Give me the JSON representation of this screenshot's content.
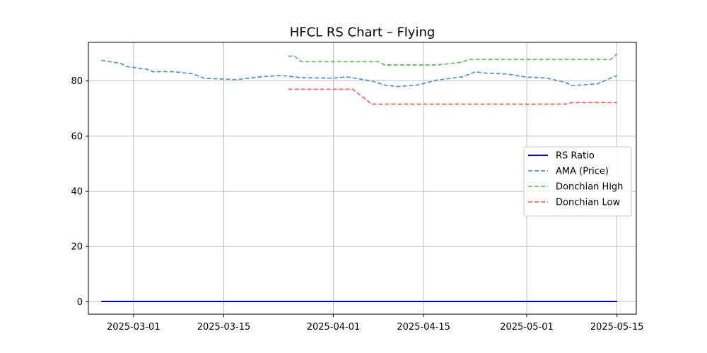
{
  "chart_data": {
    "type": "line",
    "title": "HFCL RS Chart – Flying",
    "xlabel": "",
    "ylabel": "",
    "x_range": [
      "2025-02-22",
      "2025-05-18"
    ],
    "ylim": [
      -4.5,
      94
    ],
    "x_ticks": [
      "2025-03-01",
      "2025-03-15",
      "2025-04-01",
      "2025-04-15",
      "2025-05-01",
      "2025-05-15"
    ],
    "y_ticks": [
      0,
      20,
      40,
      60,
      80
    ],
    "grid": true,
    "legend_position": "center-right",
    "series": [
      {
        "name": "RS Ratio",
        "color": "#0000cc",
        "style": "solid",
        "points": [
          [
            "2025-02-24",
            0.1
          ],
          [
            "2025-05-15",
            0.1
          ]
        ]
      },
      {
        "name": "AMA (Price)",
        "color": "#5599c8",
        "style": "dashed",
        "points": [
          [
            "2025-02-24",
            87.5
          ],
          [
            "2025-02-27",
            86.4
          ],
          [
            "2025-02-28",
            85.2
          ],
          [
            "2025-03-03",
            84.3
          ],
          [
            "2025-03-04",
            83.4
          ],
          [
            "2025-03-07",
            83.4
          ],
          [
            "2025-03-10",
            82.7
          ],
          [
            "2025-03-12",
            81.0
          ],
          [
            "2025-03-17",
            80.5
          ],
          [
            "2025-03-21",
            81.6
          ],
          [
            "2025-03-24",
            82.0
          ],
          [
            "2025-03-27",
            81.2
          ],
          [
            "2025-04-01",
            81.0
          ],
          [
            "2025-04-03",
            81.5
          ],
          [
            "2025-04-07",
            80.0
          ],
          [
            "2025-04-09",
            78.5
          ],
          [
            "2025-04-11",
            78.0
          ],
          [
            "2025-04-14",
            78.5
          ],
          [
            "2025-04-17",
            80.3
          ],
          [
            "2025-04-21",
            81.5
          ],
          [
            "2025-04-23",
            83.3
          ],
          [
            "2025-04-25",
            82.8
          ],
          [
            "2025-04-28",
            82.5
          ],
          [
            "2025-05-01",
            81.4
          ],
          [
            "2025-05-04",
            81.1
          ],
          [
            "2025-05-07",
            79.5
          ],
          [
            "2025-05-08",
            78.3
          ],
          [
            "2025-05-12",
            79.0
          ],
          [
            "2025-05-15",
            82.0
          ]
        ]
      },
      {
        "name": "Donchian High",
        "color": "#66bb66",
        "style": "dashed",
        "points": [
          [
            "2025-03-25",
            89.0
          ],
          [
            "2025-03-26",
            89.0
          ],
          [
            "2025-03-27",
            87.0
          ],
          [
            "2025-04-07",
            87.0
          ],
          [
            "2025-04-08",
            87.0
          ],
          [
            "2025-04-09",
            85.8
          ],
          [
            "2025-04-17",
            85.8
          ],
          [
            "2025-04-21",
            86.8
          ],
          [
            "2025-04-22",
            87.8
          ],
          [
            "2025-05-14",
            87.8
          ],
          [
            "2025-05-15",
            89.8
          ]
        ]
      },
      {
        "name": "Donchian Low",
        "color": "#ff6666",
        "style": "dashed",
        "points": [
          [
            "2025-03-25",
            77.0
          ],
          [
            "2025-04-04",
            77.0
          ],
          [
            "2025-04-07",
            71.6
          ],
          [
            "2025-05-07",
            71.6
          ],
          [
            "2025-05-08",
            72.2
          ],
          [
            "2025-05-15",
            72.2
          ]
        ]
      }
    ]
  }
}
